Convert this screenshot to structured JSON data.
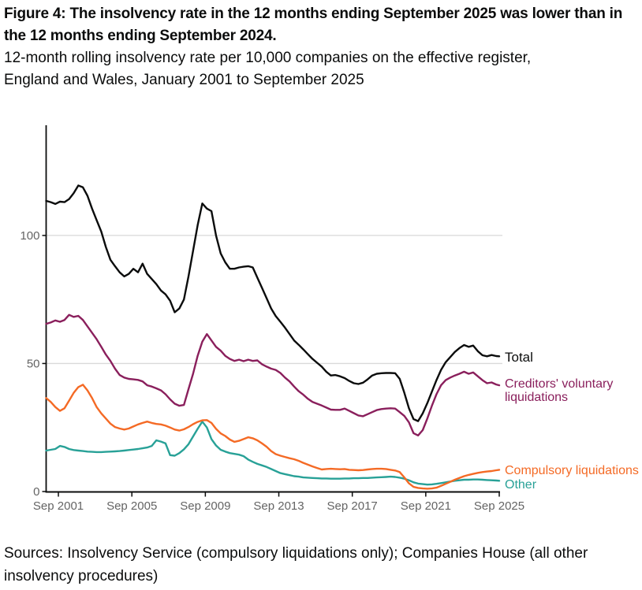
{
  "header": {
    "title": "Figure 4: The insolvency rate in the 12 months ending September 2025 was lower than in the 12 months ending September 2024.",
    "subtitle": "12-month rolling insolvency rate per 10,000 companies on the effective register, England and Wales, January 2001 to September 2025"
  },
  "footer": {
    "sources": "Sources: Insolvency Service (compulsory liquidations only); Companies House (all other insolvency procedures)"
  },
  "chart_data": {
    "type": "line",
    "title": "Figure 4: The insolvency rate in the 12 months ending September 2025 was lower than in the 12 months ending September 2024.",
    "subtitle": "12-month rolling insolvency rate per 10,000 companies on the effective register, England and Wales, January 2001 to September 2025",
    "xlabel": "",
    "ylabel": "Insolvency rate per 10,000 companies (12-month rolling)",
    "x_unit": "months since January 2001, quarterly samples (Jan 2001 = 0, Sep 2025 = 296)",
    "xlim": [
      0,
      296
    ],
    "ylim": [
      0,
      143
    ],
    "grid": "horizontal gridlines at 50 and 100 only",
    "legend_position": "right of line ends",
    "colors": {
      "grid": "#d9d9d9",
      "axis": "#0b0c0c",
      "tick_text": "#646464"
    },
    "x_ticks": [
      {
        "label": "Sep 2001",
        "month": 8
      },
      {
        "label": "Sep 2005",
        "month": 56
      },
      {
        "label": "Sep 2009",
        "month": 104
      },
      {
        "label": "Sep 2013",
        "month": 152
      },
      {
        "label": "Sep 2017",
        "month": 200
      },
      {
        "label": "Sep 2021",
        "month": 248
      },
      {
        "label": "Sep 2025",
        "month": 296
      }
    ],
    "y_ticks": [
      0,
      50,
      100
    ],
    "x": [
      0,
      3,
      6,
      9,
      12,
      15,
      18,
      21,
      24,
      27,
      30,
      33,
      36,
      39,
      42,
      45,
      48,
      51,
      54,
      57,
      60,
      63,
      66,
      69,
      72,
      75,
      78,
      81,
      84,
      87,
      90,
      93,
      96,
      99,
      102,
      105,
      108,
      111,
      114,
      117,
      120,
      123,
      126,
      129,
      132,
      135,
      138,
      141,
      144,
      147,
      150,
      153,
      156,
      159,
      162,
      165,
      168,
      171,
      174,
      177,
      180,
      183,
      186,
      189,
      192,
      195,
      198,
      201,
      204,
      207,
      210,
      213,
      216,
      219,
      222,
      225,
      228,
      231,
      234,
      237,
      240,
      243,
      246,
      249,
      252,
      255,
      258,
      261,
      264,
      267,
      270,
      273,
      276,
      279,
      282,
      285,
      288,
      291,
      294,
      296
    ],
    "series": [
      {
        "name": "Total",
        "color": "#0b0c0c",
        "values": [
          113.5,
          113,
          112.3,
          113.2,
          113,
          114.2,
          116.5,
          119.5,
          118.8,
          115.5,
          110.5,
          106,
          101.5,
          95.5,
          90.5,
          88,
          85.6,
          84,
          85,
          87,
          85.6,
          89,
          85,
          83,
          81,
          78.5,
          77,
          74.5,
          70,
          71.5,
          75,
          84,
          94,
          104,
          112.5,
          110.5,
          109.5,
          100,
          93,
          89.5,
          87,
          87,
          87.5,
          87.8,
          88,
          87.5,
          83.5,
          79.5,
          75.5,
          71.5,
          68.5,
          66.3,
          64,
          61.5,
          59,
          57.3,
          55.5,
          53.6,
          51.8,
          50.3,
          48.8,
          46.8,
          45.3,
          45.5,
          45,
          44.3,
          43.2,
          42.3,
          42,
          42.5,
          43.8,
          45.3,
          46,
          46.2,
          46.3,
          46.3,
          46.2,
          44,
          38.5,
          32.5,
          28.3,
          27.5,
          30.5,
          34.5,
          39,
          43.5,
          47.5,
          50.5,
          52.5,
          54.5,
          56,
          57.2,
          56.5,
          57,
          54.8,
          53.2,
          52.8,
          53.3,
          52.9,
          52.8
        ]
      },
      {
        "name": "Creditors' voluntary liquidations",
        "color": "#8a1f5c",
        "values": [
          65.5,
          66,
          66.8,
          66.3,
          67,
          69,
          68.2,
          68.6,
          67,
          64.5,
          62,
          59.5,
          56.5,
          53.5,
          51,
          48,
          45.5,
          44.5,
          44,
          43.8,
          43.6,
          43,
          41.5,
          41,
          40.3,
          39.5,
          38,
          36,
          34.3,
          33.5,
          33.8,
          40,
          46,
          53,
          58.5,
          61.5,
          59,
          56.5,
          55,
          53,
          51.8,
          51,
          51.5,
          50.9,
          51.5,
          51,
          51.2,
          49.7,
          48.8,
          48,
          47.5,
          46.3,
          44.5,
          43,
          41,
          39.2,
          37.8,
          36.2,
          35,
          34.3,
          33.6,
          32.8,
          32,
          31.9,
          31.9,
          32.4,
          31.5,
          30.6,
          29.7,
          29.4,
          30.2,
          31,
          31.8,
          32.2,
          32.4,
          32.5,
          32.4,
          31,
          29.5,
          27,
          22.8,
          21.9,
          24,
          28.5,
          33.5,
          38,
          41.5,
          43.5,
          44.5,
          45.3,
          46,
          46.8,
          46,
          46.5,
          45,
          43.5,
          42.3,
          42.6,
          41.8,
          41.5
        ]
      },
      {
        "name": "Compulsory liquidations",
        "color": "#f46a25",
        "values": [
          36.5,
          35,
          33,
          31.5,
          32.5,
          35.5,
          38.5,
          40.8,
          41.7,
          39.5,
          36.5,
          33,
          30.5,
          28.5,
          26.5,
          25.2,
          24.6,
          24.2,
          24.6,
          25.4,
          26.2,
          26.8,
          27.3,
          26.8,
          26.4,
          26.2,
          25.7,
          25,
          24.2,
          23.8,
          24.3,
          25.2,
          26.3,
          27.2,
          27.8,
          27.9,
          26.8,
          24.5,
          22.7,
          21.7,
          20.3,
          19.4,
          19.8,
          20.5,
          21.2,
          20.8,
          20,
          18.8,
          17.5,
          15.8,
          14.6,
          14,
          13.5,
          13,
          12.6,
          12,
          11.2,
          10.5,
          9.8,
          9.2,
          8.6,
          8.8,
          8.9,
          8.8,
          8.7,
          8.8,
          8.5,
          8.4,
          8.3,
          8.4,
          8.6,
          8.8,
          8.9,
          8.9,
          8.8,
          8.5,
          8.2,
          7.6,
          5.5,
          3.2,
          1.8,
          1.4,
          1.2,
          1.1,
          1.2,
          1.5,
          2.2,
          3,
          3.8,
          4.6,
          5.3,
          6,
          6.5,
          6.9,
          7.3,
          7.6,
          7.8,
          8,
          8.3,
          8.5
        ]
      },
      {
        "name": "Other",
        "color": "#28a197",
        "values": [
          16,
          16.3,
          16.6,
          17.8,
          17.4,
          16.6,
          16.2,
          16,
          15.8,
          15.6,
          15.5,
          15.4,
          15.4,
          15.5,
          15.6,
          15.7,
          15.8,
          16,
          16.2,
          16.4,
          16.6,
          16.9,
          17.2,
          17.8,
          20,
          19.5,
          18.8,
          14.2,
          14,
          15,
          16.5,
          18.5,
          21.5,
          24.5,
          27.3,
          25,
          20.5,
          18,
          16.3,
          15.6,
          15,
          14.7,
          14.4,
          13.8,
          12.5,
          11.6,
          10.8,
          10.2,
          9.6,
          8.8,
          8,
          7.2,
          6.8,
          6.4,
          6,
          5.8,
          5.5,
          5.4,
          5.3,
          5.2,
          5.1,
          5.1,
          5,
          5,
          5,
          5.1,
          5.1,
          5.2,
          5.2,
          5.3,
          5.3,
          5.4,
          5.5,
          5.6,
          5.7,
          5.8,
          5.7,
          5.4,
          5,
          4.4,
          3.6,
          3.1,
          2.9,
          2.7,
          2.8,
          3,
          3.3,
          3.6,
          3.9,
          4.2,
          4.4,
          4.6,
          4.6,
          4.7,
          4.7,
          4.6,
          4.5,
          4.4,
          4.3,
          4.2
        ]
      }
    ]
  }
}
